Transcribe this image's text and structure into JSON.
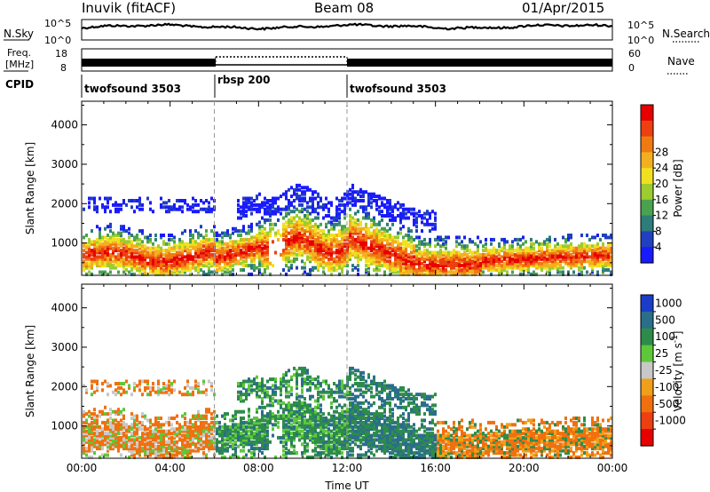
{
  "header": {
    "station": "Inuvik (fitACF)",
    "beam": "Beam 08",
    "date": "01/Apr/2015"
  },
  "noise_panel": {
    "left_label": "N.Sky",
    "right_label": "N.Search",
    "left_ticks": [
      "10^5",
      "10^0"
    ],
    "right_ticks": [
      "10^5",
      "10^0"
    ]
  },
  "freq_panel": {
    "left_label_1": "Freq.",
    "left_label_2": "[MHz]",
    "right_label": "Nave",
    "left_ticks": [
      "18",
      "8"
    ],
    "right_ticks": [
      "60",
      "0"
    ]
  },
  "cpid": {
    "label": "CPID",
    "segments": [
      {
        "name": "twofsound 3503",
        "start_hr": 0,
        "end_hr": 6
      },
      {
        "name": "rbsp 200",
        "start_hr": 6,
        "end_hr": 12
      },
      {
        "name": "twofsound 3503",
        "start_hr": 12,
        "end_hr": 24
      }
    ]
  },
  "chart_data": [
    {
      "type": "heatmap",
      "title": "",
      "xlabel": "",
      "ylabel": "Slant Range [km]",
      "xlim": [
        0,
        24
      ],
      "ylim": [
        180,
        4600
      ],
      "yticks": [
        "1000",
        "2000",
        "3000",
        "4000"
      ],
      "colorbar": {
        "label": "Power [dB]",
        "ticks": [
          "4",
          "8",
          "12",
          "16",
          "20",
          "24",
          "28"
        ],
        "colors": [
          "#1a1aff",
          "#2040c0",
          "#2e7d7a",
          "#4aa24e",
          "#9ccc2e",
          "#f0e020",
          "#f2b020",
          "#f07a12",
          "#ec4010",
          "#e80000"
        ]
      }
    },
    {
      "type": "heatmap",
      "title": "",
      "xlabel": "Time UT",
      "ylabel": "Slant Range [km]",
      "xlim": [
        0,
        24
      ],
      "ylim": [
        180,
        4600
      ],
      "xticks": [
        "00:00",
        "04:00",
        "08:00",
        "12:00",
        "16:00",
        "20:00",
        "00:00"
      ],
      "yticks": [
        "1000",
        "2000",
        "3000",
        "4000"
      ],
      "colorbar": {
        "label": "Velocity [m s^-1]",
        "ticks": [
          "1000",
          "500",
          "100",
          "25",
          "-25",
          "-100",
          "-500",
          "-1000"
        ],
        "colors": [
          "#1a3cc8",
          "#2a6e8a",
          "#2e8c4a",
          "#5ec83a",
          "#c8c8c8",
          "#f0a018",
          "#f07010",
          "#ec4010",
          "#e80000"
        ]
      }
    }
  ]
}
